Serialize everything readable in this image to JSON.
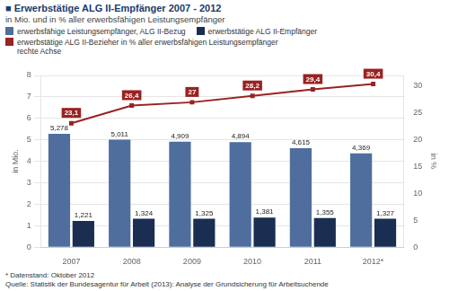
{
  "chart_data": {
    "type": "bar",
    "title": "■ Erwerbstätige ALG II-Empfänger 2007 - 2012",
    "subtitle": "in Mio. und in % aller erwerbsfähigen Leistungsempfänger",
    "categories": [
      "2007",
      "2008",
      "2009",
      "2010",
      "2011",
      "2012*"
    ],
    "series": [
      {
        "name": "erwerbsfähige Leistungsempfänger, ALG II-Bezug",
        "color": "#4f6e9e",
        "values": [
          5.278,
          5.011,
          4.909,
          4.894,
          4.615,
          4.369
        ],
        "value_labels": [
          "5,278",
          "5,011",
          "4,909",
          "4,894",
          "4,615",
          "4,369"
        ]
      },
      {
        "name": "erwerbstätige ALG II-Empfänger",
        "color": "#1a2e52",
        "values": [
          1.221,
          1.324,
          1.325,
          1.381,
          1.355,
          1.327
        ],
        "value_labels": [
          "1,221",
          "1,324",
          "1,325",
          "1,381",
          "1,355",
          "1,327"
        ]
      },
      {
        "name": "erwerbstätige ALG II-Bezieher in % aller erwerbsfähigen Leistungsempfänger\nrechte Achse",
        "type": "line",
        "axis": "y2",
        "color": "#992222",
        "marker": "square",
        "values": [
          23.1,
          26.4,
          27.0,
          28.2,
          29.4,
          30.4
        ],
        "value_labels": [
          "23,1",
          "26,4",
          "27",
          "28,2",
          "29,4",
          "30,4"
        ]
      }
    ],
    "ylabel": "in Mio.",
    "y2label": "in %",
    "ylim": [
      0,
      8
    ],
    "yticks": [
      0,
      1,
      2,
      3,
      4,
      5,
      6,
      7,
      8
    ],
    "y2lim": [
      0,
      32
    ],
    "y2ticks": [
      0,
      5,
      10,
      15,
      20,
      25,
      30
    ],
    "grid": true,
    "legend": "top",
    "data_labels": true,
    "annotations": [
      "* Datenstand: Oktober 2012",
      "Quelle: Statistik der Bundesagentur für Arbeit (2013): Analyse der Grundsicherung für Arbeitsuchende"
    ]
  }
}
